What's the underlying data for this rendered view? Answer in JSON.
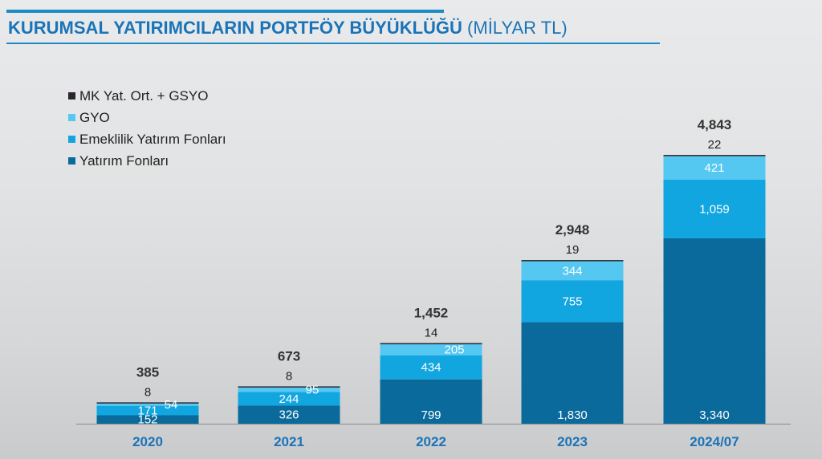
{
  "header": {
    "title": "KURUMSAL YATIRIMCILARIN PORTFÖY BÜYÜKLÜĞÜ",
    "unit": "(MİLYAR TL)"
  },
  "legend": {
    "items": [
      {
        "label": "MK Yat. Ort. + GSYO",
        "color": "#2a2630"
      },
      {
        "label": "GYO",
        "color": "#55c8f2"
      },
      {
        "label": "Emeklilik Yatırım Fonları",
        "color": "#12a6e0"
      },
      {
        "label": "Yatırım Fonları",
        "color": "#0a6a9c"
      }
    ]
  },
  "chart_data": {
    "type": "bar",
    "stacked": true,
    "categories": [
      "2020",
      "2021",
      "2022",
      "2023",
      "2024/07"
    ],
    "series": [
      {
        "name": "Yatırım Fonları",
        "values": [
          152,
          326,
          799,
          1830,
          3340
        ],
        "labels": [
          "152",
          "326",
          "799",
          "1,830",
          "3,340"
        ],
        "color": "#0a6a9c"
      },
      {
        "name": "Emeklilik Yatırım Fonları",
        "values": [
          171,
          244,
          434,
          755,
          1059
        ],
        "labels": [
          "171",
          "244",
          "434",
          "755",
          "1,059"
        ],
        "color": "#12a6e0"
      },
      {
        "name": "GYO",
        "values": [
          54,
          95,
          205,
          344,
          421
        ],
        "labels": [
          "54",
          "95",
          "205",
          "344",
          "421"
        ],
        "color": "#55c8f2"
      },
      {
        "name": "MK Yat. Ort. + GSYO",
        "values": [
          8,
          8,
          14,
          19,
          22
        ],
        "labels": [
          "8",
          "8",
          "14",
          "19",
          "22"
        ],
        "color": "#2a2630"
      }
    ],
    "totals": [
      385,
      673,
      1452,
      2948,
      4843
    ],
    "total_labels": [
      "385",
      "673",
      "1,452",
      "2,948",
      "4,843"
    ],
    "ylim": [
      0,
      4843
    ],
    "grid": false,
    "legend_position": "top-left",
    "xlabel": "",
    "ylabel": ""
  }
}
